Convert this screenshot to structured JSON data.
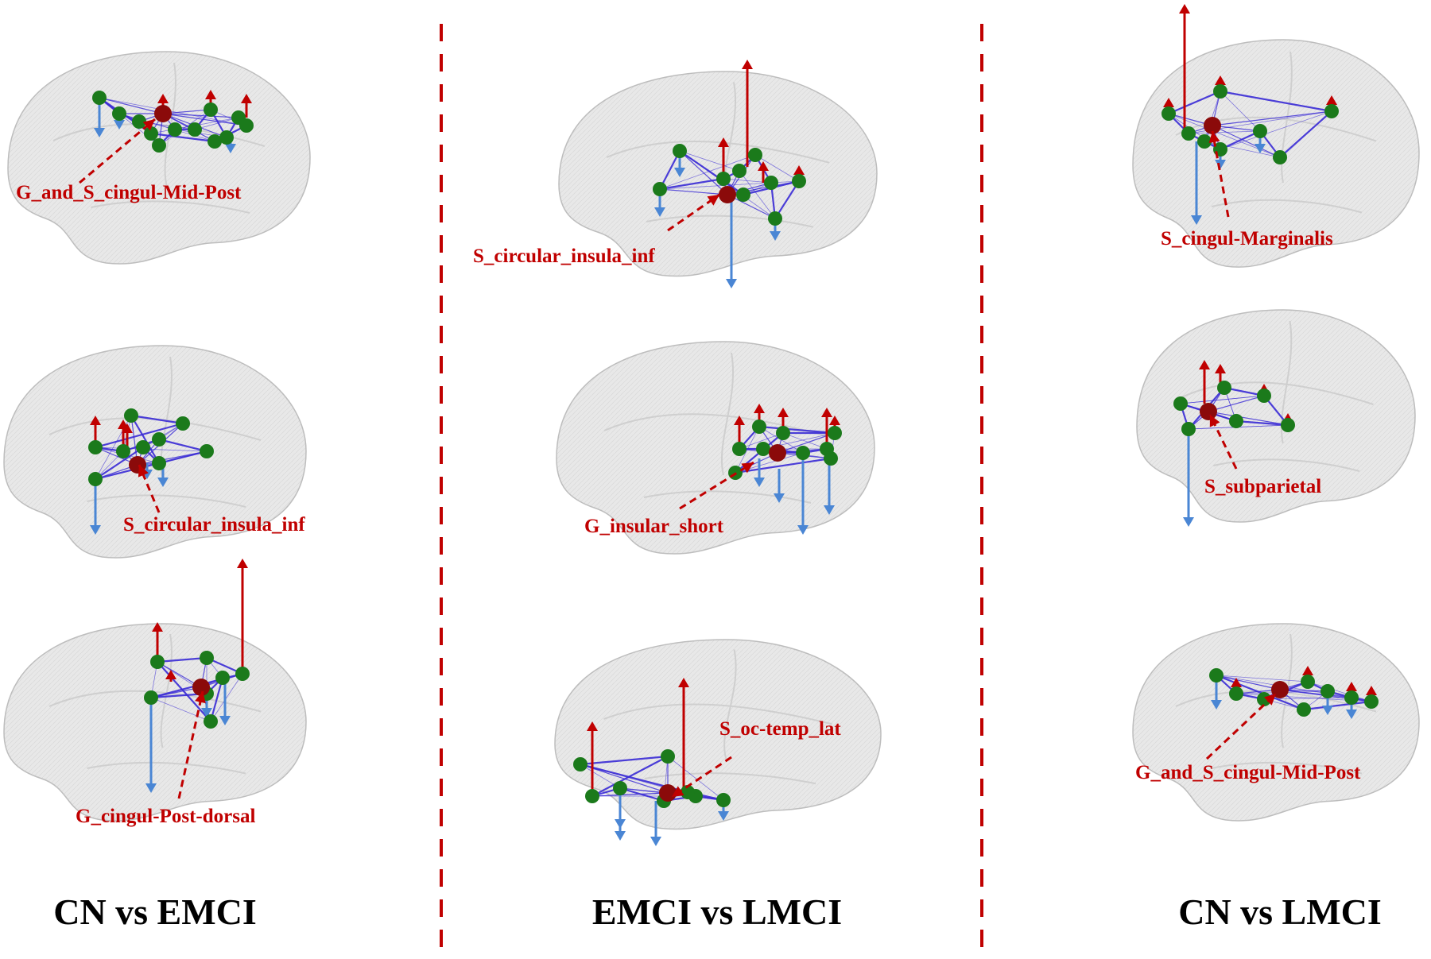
{
  "colors": {
    "brain_fill": "#e6e6e6",
    "brain_stroke": "#bdbdbd",
    "node_green": "#1b7a1b",
    "hub_node": "#8b0a0a",
    "edge": "#3a2bd6",
    "arrow_up": "#c00000",
    "arrow_down": "#4a86d4",
    "label_red": "#c00000",
    "divider": "#c00000"
  },
  "columns": [
    {
      "title": "CN vs EMCI",
      "panels": [
        {
          "label": "G_and_S_cingul-Mid-Post",
          "view": "medial"
        },
        {
          "label": "S_circular_insula_inf",
          "view": "lateral"
        },
        {
          "label": "G_cingul-Post-dorsal",
          "view": "medial"
        }
      ]
    },
    {
      "title": "EMCI vs LMCI",
      "panels": [
        {
          "label": "S_circular_insula_inf",
          "view": "lateral"
        },
        {
          "label": "G_insular_short",
          "view": "lateral"
        },
        {
          "label": "S_oc-temp_lat",
          "view": "lateral"
        }
      ]
    },
    {
      "title": "CN vs LMCI",
      "panels": [
        {
          "label": "S_cingul-Marginalis",
          "view": "medial"
        },
        {
          "label": "S_subparietal",
          "view": "medial"
        },
        {
          "label": "G_and_S_cingul-Mid-Post",
          "view": "medial"
        }
      ]
    }
  ]
}
